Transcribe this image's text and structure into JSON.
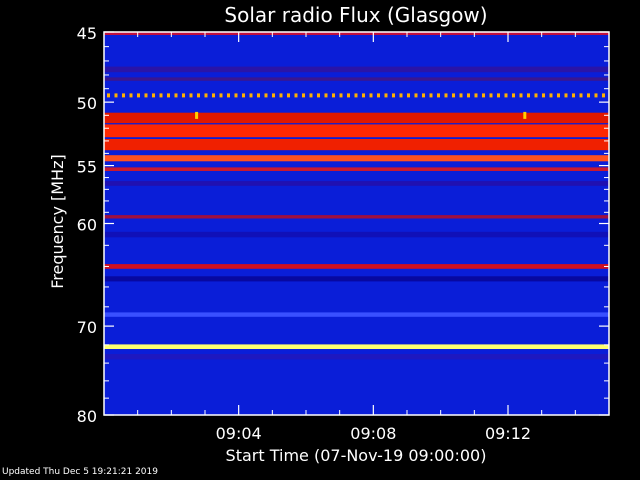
{
  "chart_data": {
    "type": "heatmap",
    "title": "Solar radio Flux (Glasgow)",
    "ylabel": "Frequency [MHz]",
    "xlabel": "Start Time (07-Nov-19 09:00:00)",
    "y_axis": {
      "scale": "log",
      "range": [
        45,
        80
      ],
      "major_ticks": [
        45,
        50,
        55,
        60,
        70,
        80
      ],
      "major_tick_labels": [
        "45",
        "50",
        "55",
        "60",
        "70",
        "80"
      ],
      "minor_ticks": [
        46,
        47,
        48,
        49,
        51,
        52,
        53,
        54,
        56,
        57,
        58,
        59,
        62,
        64,
        66,
        68,
        72,
        74,
        76,
        78
      ],
      "inverted": true
    },
    "x_axis": {
      "range_minutes": [
        0,
        15
      ],
      "major_ticks_minutes": [
        4,
        8,
        12
      ],
      "major_tick_labels": [
        "09:04",
        "09:08",
        "09:12"
      ],
      "minor_ticks_minutes": [
        1,
        2,
        3,
        5,
        6,
        7,
        9,
        10,
        11,
        13,
        14
      ]
    },
    "colormap": [
      "#000000",
      "#0000ff",
      "#ff0000",
      "#ffff00",
      "#ffffff"
    ],
    "background_color": "#0a1ed8",
    "bands": [
      {
        "freq_mhz": 45.1,
        "width_mhz": 0.2,
        "color": "#c01040"
      },
      {
        "freq_mhz": 47.6,
        "width_mhz": 0.4,
        "color": "#2a14a8"
      },
      {
        "freq_mhz": 48.3,
        "width_mhz": 0.25,
        "color": "#3a1690"
      },
      {
        "freq_mhz": 49.5,
        "width_mhz": 0.3,
        "color": "#ffb000",
        "dashed": true
      },
      {
        "freq_mhz": 51.2,
        "width_mhz": 0.8,
        "color": "#e01800"
      },
      {
        "freq_mhz": 52.2,
        "width_mhz": 1.0,
        "color": "#ff2800"
      },
      {
        "freq_mhz": 53.3,
        "width_mhz": 0.9,
        "color": "#f02000"
      },
      {
        "freq_mhz": 54.4,
        "width_mhz": 0.5,
        "color": "#ff5020"
      },
      {
        "freq_mhz": 55.3,
        "width_mhz": 0.3,
        "color": "#c81830"
      },
      {
        "freq_mhz": 56.5,
        "width_mhz": 0.4,
        "color": "#2010b0"
      },
      {
        "freq_mhz": 59.4,
        "width_mhz": 0.3,
        "color": "#a01040"
      },
      {
        "freq_mhz": 61.0,
        "width_mhz": 0.5,
        "color": "#1010b8"
      },
      {
        "freq_mhz": 64.0,
        "width_mhz": 0.45,
        "color": "#d01020"
      },
      {
        "freq_mhz": 65.2,
        "width_mhz": 0.5,
        "color": "#0808a0"
      },
      {
        "freq_mhz": 68.8,
        "width_mhz": 0.45,
        "color": "#3a50ff"
      },
      {
        "freq_mhz": 72.2,
        "width_mhz": 0.5,
        "color": "#ffff70"
      },
      {
        "freq_mhz": 73.3,
        "width_mhz": 0.6,
        "color": "#1e18c0"
      }
    ],
    "bursts": [
      {
        "time_minutes": 2.75,
        "freq_mhz": 51.2,
        "color": "#ffd000"
      },
      {
        "time_minutes": 12.5,
        "freq_mhz": 51.2,
        "color": "#ffd000"
      }
    ],
    "axis_color": "#ffffff",
    "grid": false
  },
  "footer": {
    "updated_text": "Updated Thu Dec  5 19:21:21 2019"
  }
}
